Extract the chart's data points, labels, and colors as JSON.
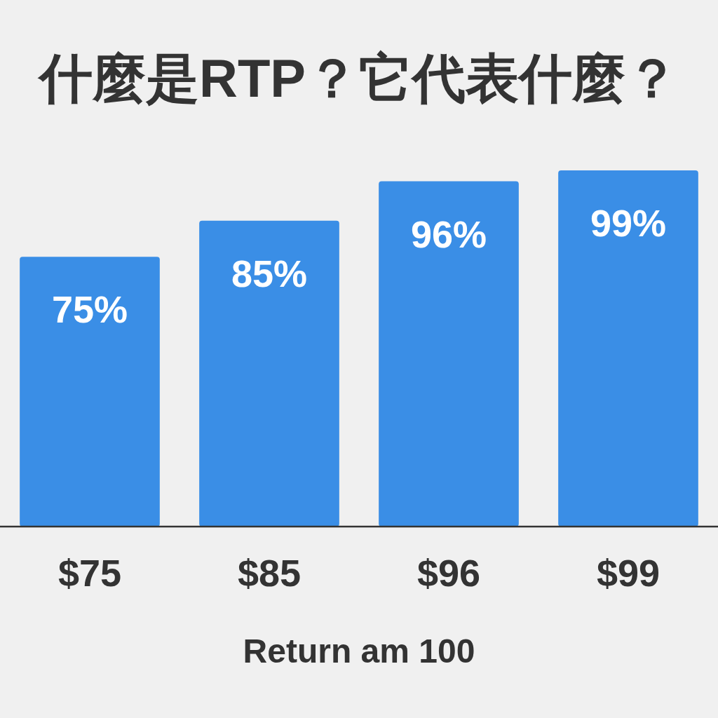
{
  "chart_data": {
    "type": "bar",
    "title": "什麼是RTP？它代表什麼？",
    "xlabel": "Return am 100",
    "categories": [
      "$75",
      "$85",
      "$96",
      "$99"
    ],
    "values": [
      75,
      85,
      96,
      99
    ],
    "value_labels": [
      "75%",
      "85%",
      "96%",
      "99%"
    ],
    "color": "#3a8ee6"
  }
}
